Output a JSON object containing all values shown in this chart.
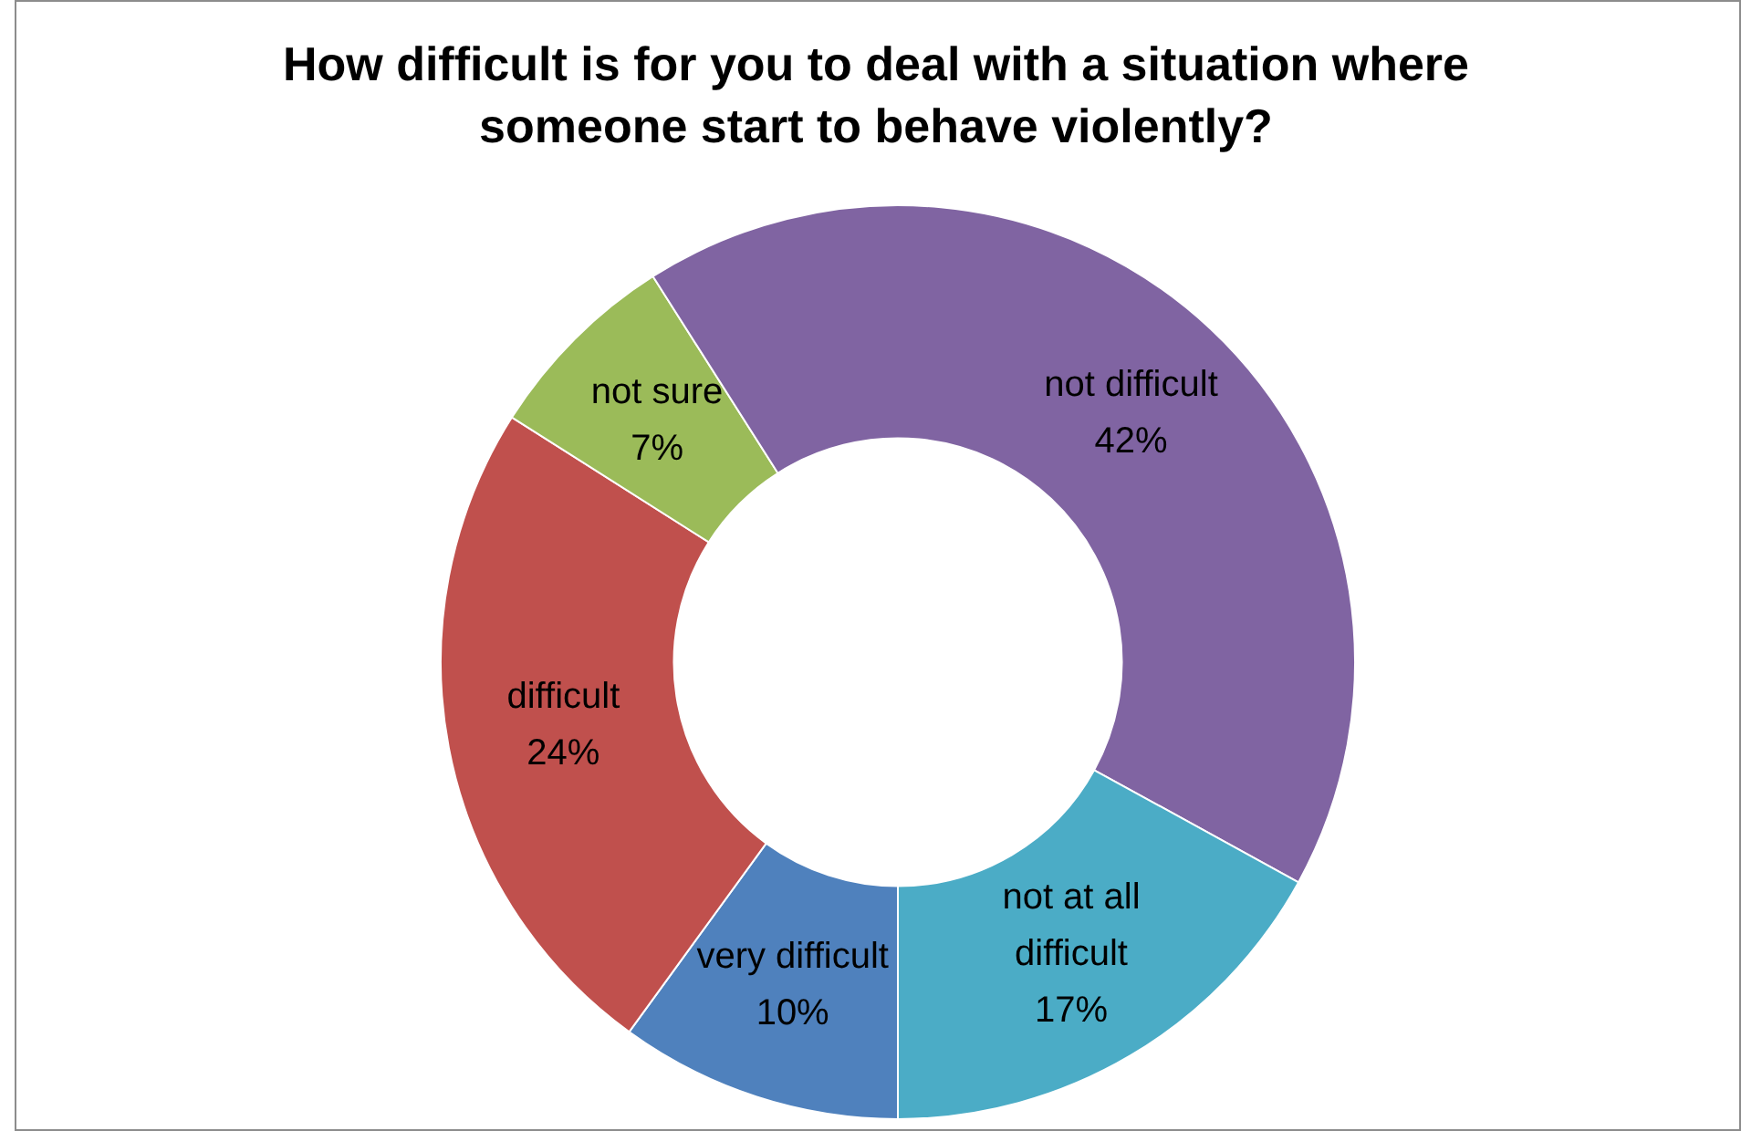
{
  "chart_data": {
    "type": "donut",
    "title": "How difficult is for you to deal with a situation where someone start to behave violently?",
    "categories": [
      "very difficult",
      "difficult",
      "not sure",
      "not difficult",
      "not at all difficult"
    ],
    "values": [
      10,
      24,
      7,
      42,
      17
    ],
    "colors": [
      "#4f81bd",
      "#c0504d",
      "#9bbb59",
      "#8064a2",
      "#4bacc6"
    ],
    "value_labels": [
      "10%",
      "24%",
      "7%",
      "42%",
      "17%"
    ],
    "legend": false
  }
}
